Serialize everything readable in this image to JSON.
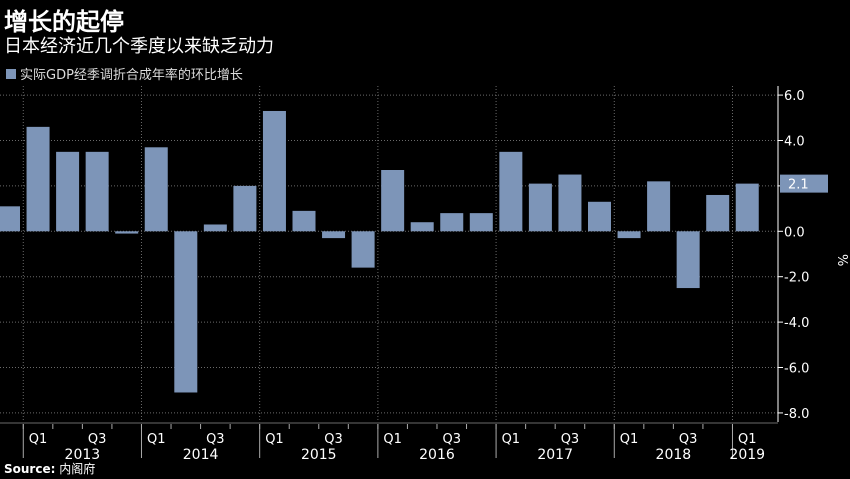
{
  "title": "增长的起停",
  "subtitle": "日本经济近几个季度以来缺乏动力",
  "source_label": "Source:",
  "source_text": "内阁府",
  "colors": {
    "bar": "#7d95b8",
    "background": "#000000",
    "grid": "#6a6a6a",
    "axis": "#ffffff"
  },
  "chart_data": {
    "type": "bar",
    "title": "增长的起停",
    "subtitle": "日本经济近几个季度以来缺乏动力",
    "legend": "实际GDP经季调折合成年率的环比增长",
    "ylabel": "%",
    "ylim": [
      -8.4,
      6.4
    ],
    "yticks": [
      6.0,
      4.0,
      2.0,
      0.0,
      -2.0,
      -4.0,
      -6.0,
      -8.0
    ],
    "ytick_labels": [
      "6.0",
      "4.0",
      "2.0",
      "0.0",
      "-2.0",
      "-4.0",
      "-6.0",
      "-8.0"
    ],
    "categories": [
      "2012Q4",
      "2013Q1",
      "2013Q2",
      "2013Q3",
      "2013Q4",
      "2014Q1",
      "2014Q2",
      "2014Q3",
      "2014Q4",
      "2015Q1",
      "2015Q2",
      "2015Q3",
      "2015Q4",
      "2016Q1",
      "2016Q2",
      "2016Q3",
      "2016Q4",
      "2017Q1",
      "2017Q2",
      "2017Q3",
      "2017Q4",
      "2018Q1",
      "2018Q2",
      "2018Q3",
      "2018Q4",
      "2019Q1"
    ],
    "values": [
      1.1,
      4.6,
      3.5,
      3.5,
      -0.1,
      3.7,
      -7.1,
      0.3,
      2.0,
      5.3,
      0.9,
      -0.3,
      -1.6,
      2.7,
      0.4,
      0.8,
      0.8,
      3.5,
      2.1,
      2.5,
      1.3,
      -0.3,
      2.2,
      -2.5,
      1.6,
      2.1
    ],
    "quarter_labels": [
      {
        "index": 1,
        "label": "Q1"
      },
      {
        "index": 3,
        "label": "Q3"
      },
      {
        "index": 5,
        "label": "Q1"
      },
      {
        "index": 7,
        "label": "Q3"
      },
      {
        "index": 9,
        "label": "Q1"
      },
      {
        "index": 11,
        "label": "Q3"
      },
      {
        "index": 13,
        "label": "Q1"
      },
      {
        "index": 15,
        "label": "Q3"
      },
      {
        "index": 17,
        "label": "Q1"
      },
      {
        "index": 19,
        "label": "Q3"
      },
      {
        "index": 21,
        "label": "Q1"
      },
      {
        "index": 23,
        "label": "Q3"
      },
      {
        "index": 25,
        "label": "Q1"
      }
    ],
    "years": [
      {
        "label": "2013",
        "start": 1,
        "end": 4
      },
      {
        "label": "2014",
        "start": 5,
        "end": 8
      },
      {
        "label": "2015",
        "start": 9,
        "end": 12
      },
      {
        "label": "2016",
        "start": 13,
        "end": 16
      },
      {
        "label": "2017",
        "start": 17,
        "end": 20
      },
      {
        "label": "2018",
        "start": 21,
        "end": 24
      },
      {
        "label": "2019",
        "start": 25,
        "end": 25
      }
    ],
    "last_value_label": "2.1",
    "grid": true
  }
}
